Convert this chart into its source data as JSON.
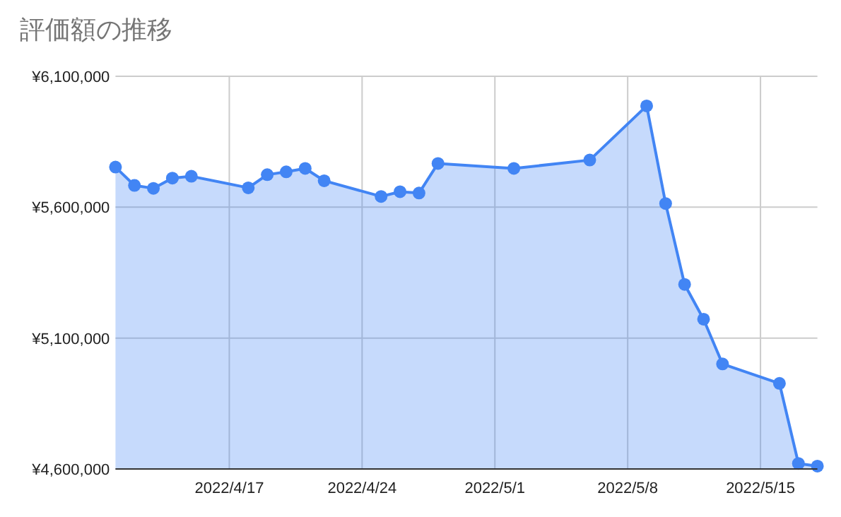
{
  "chart_data": {
    "type": "area",
    "title": "評価額の推移",
    "x": [
      "2022-04-11",
      "2022-04-12",
      "2022-04-13",
      "2022-04-14",
      "2022-04-15",
      "2022-04-18",
      "2022-04-19",
      "2022-04-20",
      "2022-04-21",
      "2022-04-22",
      "2022-04-25",
      "2022-04-26",
      "2022-04-27",
      "2022-04-28",
      "2022-05-02",
      "2022-05-06",
      "2022-05-09",
      "2022-05-10",
      "2022-05-11",
      "2022-05-12",
      "2022-05-13",
      "2022-05-16",
      "2022-05-17",
      "2022-05-18"
    ],
    "series": [
      {
        "color": "#4285f4",
        "values": [
          5753000,
          5683000,
          5672000,
          5711000,
          5718000,
          5674000,
          5724000,
          5735000,
          5748000,
          5701000,
          5641000,
          5659000,
          5654000,
          5767000,
          5748000,
          5780000,
          5987000,
          5614000,
          5305000,
          5172000,
          5001000,
          4927000,
          4621000,
          4611000
        ]
      }
    ],
    "xlim": [
      "2022-04-11",
      "2022-05-18"
    ],
    "xticks": [
      {
        "value": "2022-04-17",
        "label": "2022/4/17"
      },
      {
        "value": "2022-04-24",
        "label": "2022/4/24"
      },
      {
        "value": "2022-05-01",
        "label": "2022/5/1"
      },
      {
        "value": "2022-05-08",
        "label": "2022/5/8"
      },
      {
        "value": "2022-05-15",
        "label": "2022/5/15"
      }
    ],
    "ylim": [
      4600000,
      6100000
    ],
    "yticks": [
      {
        "value": 4600000,
        "label": "¥4,600,000"
      },
      {
        "value": 5100000,
        "label": "¥5,100,000"
      },
      {
        "value": 5600000,
        "label": "¥5,600,000"
      },
      {
        "value": 6100000,
        "label": "¥6,100,000"
      }
    ],
    "grid": true,
    "marker": "circle",
    "line_style": "solid"
  }
}
